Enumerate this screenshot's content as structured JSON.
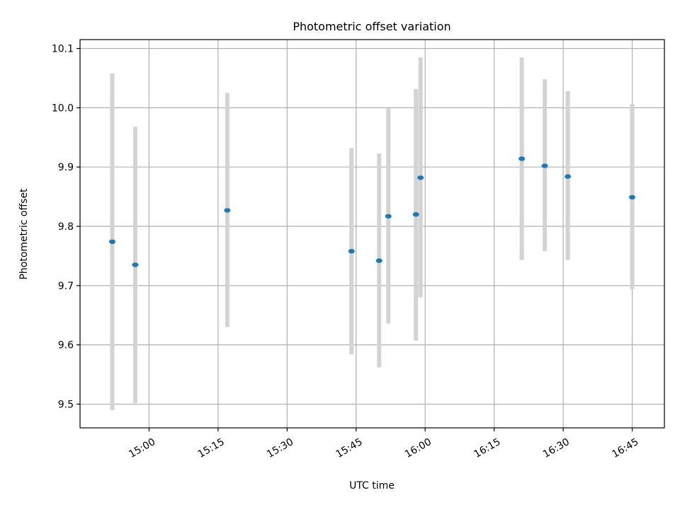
{
  "chart_data": {
    "type": "scatter",
    "title": "Photometric offset variation",
    "xlabel": "UTC time",
    "ylabel": "Photometric offset",
    "x_ticks": [
      "15:00",
      "15:15",
      "15:30",
      "15:45",
      "16:00",
      "16:15",
      "16:30",
      "16:45"
    ],
    "y_ticks": [
      "9.5",
      "9.6",
      "9.7",
      "9.8",
      "9.9",
      "10.0",
      "10.1"
    ],
    "xlim": [
      "14:45",
      "16:52"
    ],
    "ylim": [
      9.46,
      10.115
    ],
    "grid": true,
    "marker_color": "#1f77b4",
    "errorbar_color": "#d3d3d3",
    "points": [
      {
        "time": "14:52",
        "offset": 9.774,
        "low": 9.49,
        "high": 10.058
      },
      {
        "time": "14:57",
        "offset": 9.735,
        "low": 9.502,
        "high": 9.968
      },
      {
        "time": "15:17",
        "offset": 9.827,
        "low": 9.63,
        "high": 10.025
      },
      {
        "time": "15:44",
        "offset": 9.758,
        "low": 9.584,
        "high": 9.932
      },
      {
        "time": "15:50",
        "offset": 9.742,
        "low": 9.562,
        "high": 9.923
      },
      {
        "time": "15:52",
        "offset": 9.817,
        "low": 9.636,
        "high": 9.999
      },
      {
        "time": "15:58",
        "offset": 9.82,
        "low": 9.607,
        "high": 10.032
      },
      {
        "time": "15:59",
        "offset": 9.882,
        "low": 9.68,
        "high": 10.085
      },
      {
        "time": "16:21",
        "offset": 9.914,
        "low": 9.743,
        "high": 10.085
      },
      {
        "time": "16:26",
        "offset": 9.902,
        "low": 9.758,
        "high": 10.048
      },
      {
        "time": "16:31",
        "offset": 9.884,
        "low": 9.743,
        "high": 10.028
      },
      {
        "time": "16:45",
        "offset": 9.849,
        "low": 9.694,
        "high": 10.006
      }
    ]
  }
}
